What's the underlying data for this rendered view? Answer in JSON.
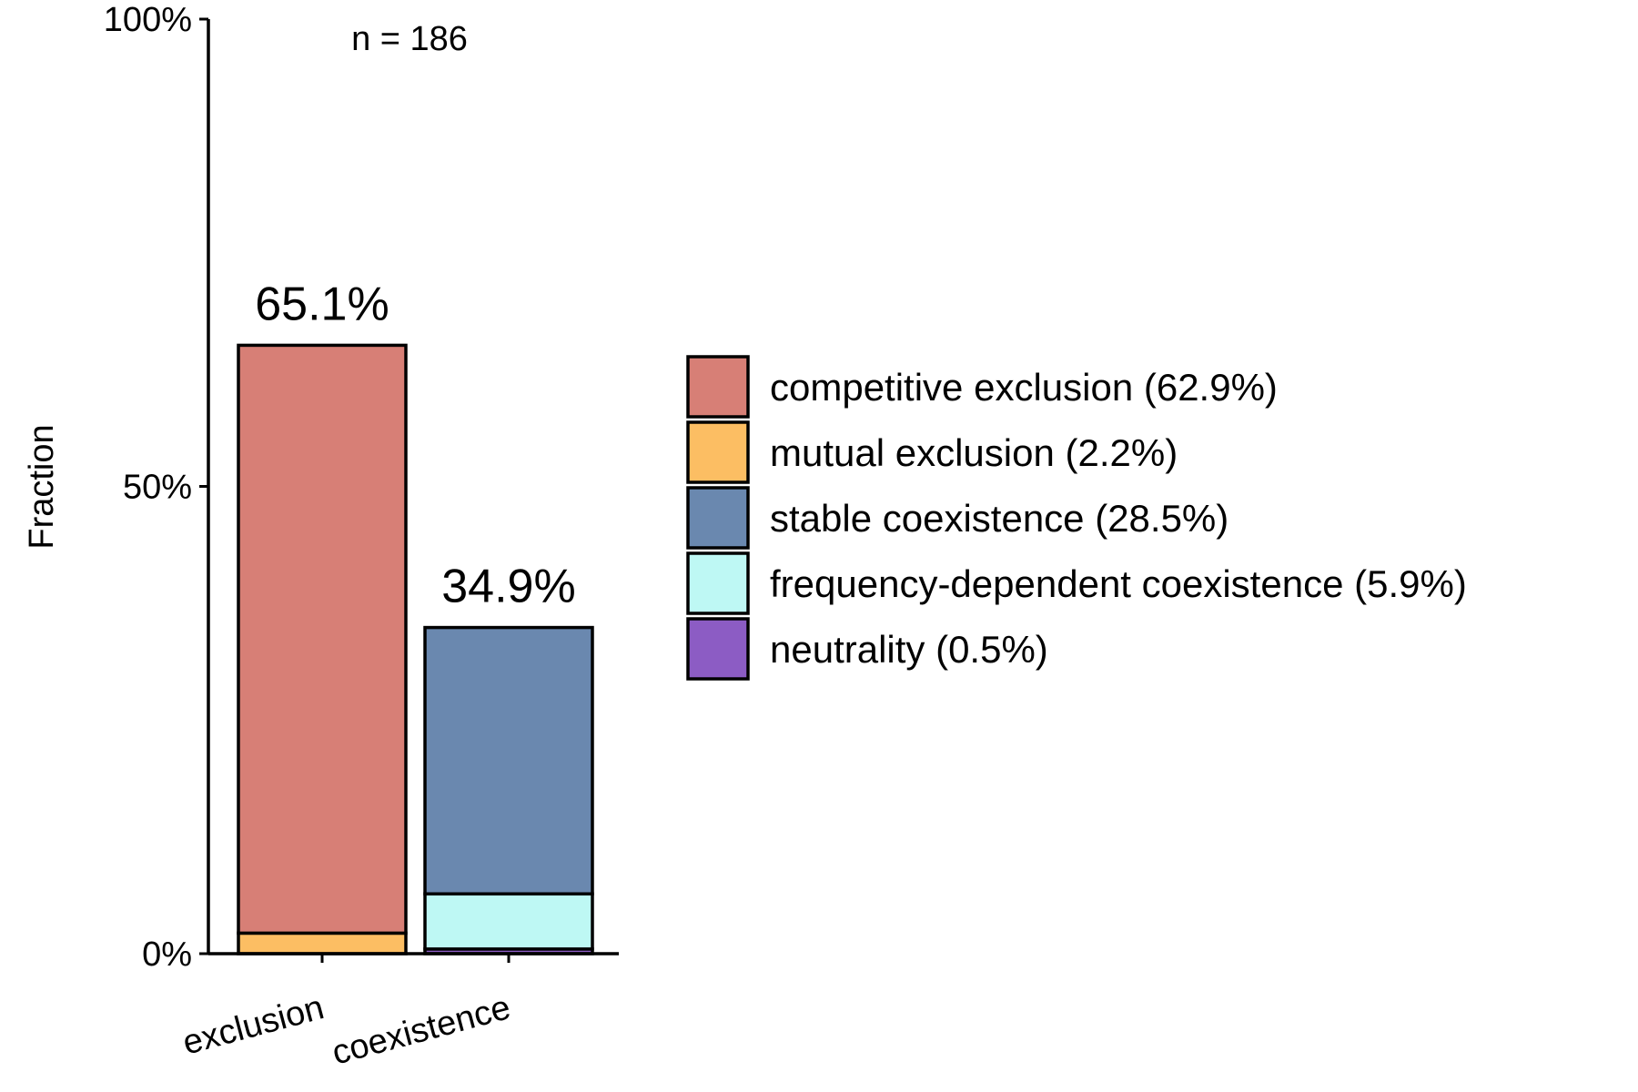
{
  "chart_data": {
    "type": "bar",
    "stacked": true,
    "ylabel": "Fraction",
    "ylim": [
      0,
      100
    ],
    "yticks": [
      "0%",
      "50%",
      "100%"
    ],
    "categories": [
      "exclusion",
      "coexistence"
    ],
    "totals": [
      65.1,
      34.9
    ],
    "total_labels": [
      "65.1%",
      "34.9%"
    ],
    "annotation": "n = 186",
    "grid": false,
    "legend_position": "right",
    "series": [
      {
        "name": "competitive exclusion",
        "legend_label": "competitive exclusion (62.9%)",
        "values": [
          62.9,
          0
        ],
        "color": "#D77F76"
      },
      {
        "name": "mutual exclusion",
        "legend_label": "mutual exclusion (2.2%)",
        "values": [
          2.2,
          0
        ],
        "color": "#FCBE63"
      },
      {
        "name": "stable coexistence",
        "legend_label": "stable coexistence (28.5%)",
        "values": [
          0,
          28.5
        ],
        "color": "#6A88AF"
      },
      {
        "name": "frequency-dependent coexistence",
        "legend_label": "frequency-dependent coexistence (5.9%)",
        "values": [
          0,
          5.9
        ],
        "color": "#BEF8F4"
      },
      {
        "name": "neutrality",
        "legend_label": "neutrality (0.5%)",
        "values": [
          0,
          0.5
        ],
        "color": "#8C5CC4"
      }
    ],
    "stack_order": [
      [
        "mutual exclusion",
        "competitive exclusion"
      ],
      [
        "neutrality",
        "frequency-dependent coexistence",
        "stable coexistence"
      ]
    ]
  }
}
